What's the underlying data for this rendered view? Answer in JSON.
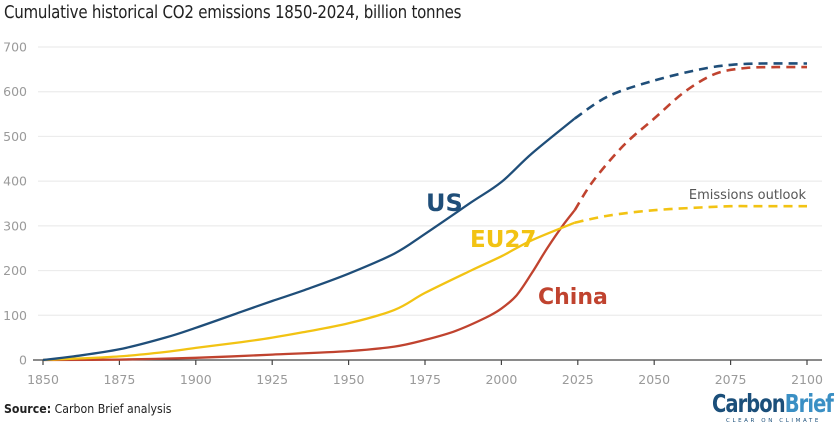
{
  "chart_data": {
    "type": "line",
    "title": "Cumulative historical CO2 emissions 1850-2024, billion tonnes",
    "xlabel": "",
    "ylabel": "",
    "xlim": [
      1850,
      2100
    ],
    "ylim": [
      0,
      700
    ],
    "x_ticks": [
      1850,
      1875,
      1900,
      1925,
      1950,
      1975,
      2000,
      2025,
      2050,
      2075,
      2100
    ],
    "y_ticks": [
      0,
      100,
      200,
      300,
      400,
      500,
      600,
      700
    ],
    "grid": "horizontal",
    "legend": "inline labels",
    "annotation": "Emissions outlook",
    "series": [
      {
        "name": "US",
        "color": "#1f4e79",
        "historical": {
          "x": [
            1850,
            1860,
            1875,
            1890,
            1900,
            1915,
            1925,
            1935,
            1950,
            1965,
            1975,
            1990,
            2000,
            2010,
            2024
          ],
          "y": [
            0,
            8,
            24,
            50,
            72,
            108,
            132,
            155,
            193,
            238,
            282,
            352,
            398,
            462,
            540
          ]
        },
        "outlook": {
          "x": [
            2024,
            2035,
            2050,
            2065,
            2075,
            2085,
            2100
          ],
          "y": [
            540,
            590,
            625,
            650,
            660,
            663,
            663
          ]
        }
      },
      {
        "name": "EU27",
        "color": "#f2c313",
        "historical": {
          "x": [
            1850,
            1860,
            1875,
            1890,
            1900,
            1915,
            1925,
            1935,
            1950,
            1965,
            1975,
            1990,
            2000,
            2010,
            2024
          ],
          "y": [
            0,
            3,
            8,
            18,
            27,
            40,
            50,
            62,
            82,
            112,
            150,
            200,
            232,
            268,
            307
          ]
        },
        "outlook": {
          "x": [
            2024,
            2035,
            2050,
            2065,
            2075,
            2085,
            2100
          ],
          "y": [
            307,
            323,
            335,
            341,
            344,
            344,
            344
          ]
        }
      },
      {
        "name": "China",
        "color": "#c0432f",
        "historical": {
          "x": [
            1850,
            1875,
            1900,
            1925,
            1950,
            1965,
            1975,
            1985,
            1995,
            2000,
            2005,
            2010,
            2015,
            2020,
            2024
          ],
          "y": [
            0,
            1,
            5,
            12,
            20,
            30,
            45,
            65,
            95,
            115,
            145,
            195,
            250,
            300,
            335
          ]
        },
        "outlook": {
          "x": [
            2024,
            2030,
            2040,
            2050,
            2060,
            2070,
            2080,
            2090,
            2100
          ],
          "y": [
            335,
            400,
            480,
            540,
            600,
            640,
            653,
            655,
            655
          ]
        }
      }
    ]
  },
  "labels": {
    "us": "US",
    "eu27": "EU27",
    "china": "China",
    "outlook": "Emissions outlook"
  },
  "footer": {
    "source_label": "Source:",
    "source_text": " Carbon Brief analysis"
  },
  "logo": {
    "part1": "Carbon",
    "part2": "Brief",
    "tagline": "CLEAR ON CLIMATE"
  }
}
